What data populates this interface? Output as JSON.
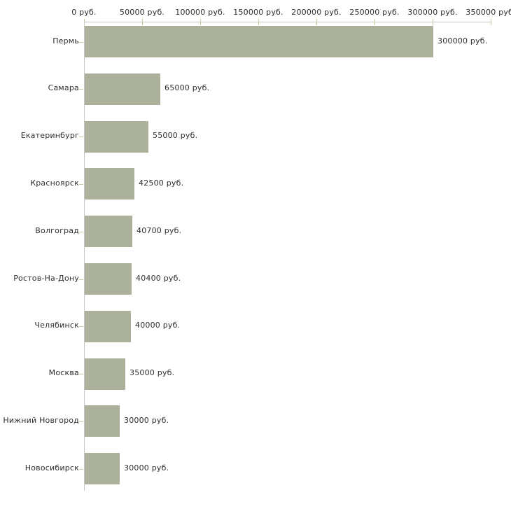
{
  "chart_data": {
    "type": "bar",
    "orientation": "horizontal",
    "title": "",
    "xlabel": "",
    "ylabel": "",
    "grid": false,
    "legend": "none",
    "categories": [
      "Пермь",
      "Самара",
      "Екатеринбург",
      "Красноярск",
      "Волгоград",
      "Ростов-На-Дону",
      "Челябинск",
      "Москва",
      "Нижний Новгород",
      "Новосибирск"
    ],
    "values": [
      300000,
      65000,
      55000,
      42500,
      40700,
      40400,
      40000,
      35000,
      30000,
      30000
    ],
    "value_labels": [
      "300000 руб.",
      "65000 руб.",
      "55000 руб.",
      "42500 руб.",
      "40700 руб.",
      "40400 руб.",
      "40000 руб.",
      "35000 руб.",
      "30000 руб.",
      "30000 руб."
    ],
    "x_axis": {
      "position": "top",
      "xlim": [
        0,
        350000
      ],
      "ticks": [
        0,
        50000,
        100000,
        150000,
        200000,
        250000,
        300000,
        350000
      ],
      "tick_labels": [
        "0 руб.",
        "50000 руб.",
        "100000 руб.",
        "150000 руб.",
        "200000 руб.",
        "250000 руб.",
        "300000 руб.",
        "350000 руб."
      ]
    },
    "colors": {
      "bar": "#acb19b",
      "axis_line": "#c6c6c6",
      "axis_tick": "#c9c9a2",
      "category_tick": "#c9c9a2",
      "text": "#2e2e2e",
      "background": "#ffffff"
    }
  }
}
